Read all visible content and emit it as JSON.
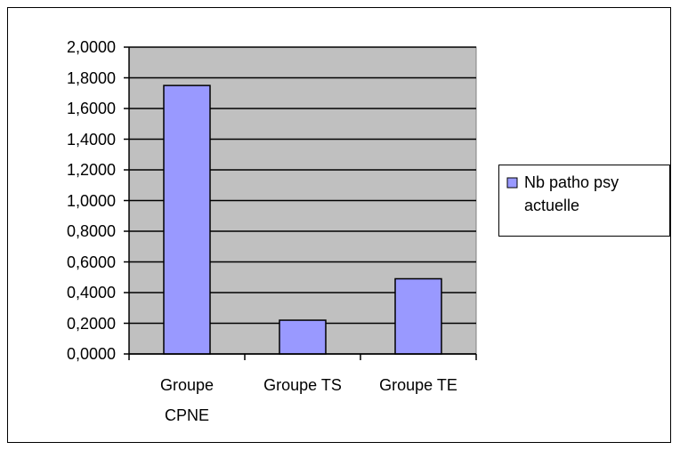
{
  "chart_data": {
    "type": "bar",
    "categories": [
      "Groupe CPNE",
      "Groupe TS",
      "Groupe TE"
    ],
    "series": [
      {
        "name": "Nb patho psy actuelle",
        "color": "#9999ff",
        "values": [
          1.75,
          0.22,
          0.49
        ]
      }
    ],
    "ylim": [
      0,
      2
    ],
    "yticks": [
      {
        "value": 0,
        "label": "0,0000"
      },
      {
        "value": 0.2,
        "label": "0,2000"
      },
      {
        "value": 0.4,
        "label": "0,4000"
      },
      {
        "value": 0.6,
        "label": "0,6000"
      },
      {
        "value": 0.8,
        "label": "0,8000"
      },
      {
        "value": 1,
        "label": "1,0000"
      },
      {
        "value": 1.2,
        "label": "1,2000"
      },
      {
        "value": 1.4,
        "label": "1,4000"
      },
      {
        "value": 1.6,
        "label": "1,6000"
      },
      {
        "value": 1.8,
        "label": "1,8000"
      },
      {
        "value": 2,
        "label": "2,0000"
      }
    ],
    "grid": true,
    "legend": "right"
  }
}
